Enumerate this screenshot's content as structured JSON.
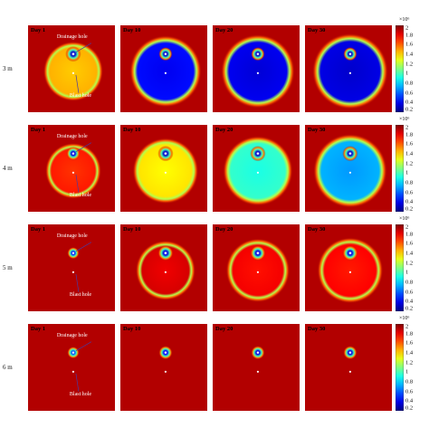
{
  "row_labels": [
    "3 m",
    "4 m",
    "5 m",
    "6 m"
  ],
  "day_labels": [
    "Day 1",
    "Day 10",
    "Day 20",
    "Day 30"
  ],
  "annotations": {
    "drainage_hole": "Drainage hole",
    "blast_hole": "Blast hole"
  },
  "colorbar": {
    "multiplier": "×10⁶",
    "ticks": [
      "2",
      "1.8",
      "1.6",
      "1.4",
      "1.2",
      "1",
      "0.8",
      "0.6",
      "0.4",
      "0.2"
    ],
    "min": 0.2,
    "max": 2.0,
    "colormap": "jet"
  },
  "colors": {
    "background": "#9f0c0c",
    "low": "#1a1aa8",
    "high": "#a00808"
  },
  "rows": [
    {
      "label": "3 m",
      "panels": [
        {
          "day": "Day 1",
          "zone_level": 1.45,
          "zone_radius": 0.3,
          "drain_level": 0.25,
          "drain_radius": 0.045
        },
        {
          "day": "Day 10",
          "zone_level": 0.32,
          "zone_radius": 0.36,
          "drain_level": 0.25,
          "drain_radius": 0.04
        },
        {
          "day": "Day 20",
          "zone_level": 0.27,
          "zone_radius": 0.37,
          "drain_level": 0.25,
          "drain_radius": 0.04
        },
        {
          "day": "Day 30",
          "zone_level": 0.25,
          "zone_radius": 0.38,
          "drain_level": 0.25,
          "drain_radius": 0.04
        }
      ]
    },
    {
      "label": "4 m",
      "panels": [
        {
          "day": "Day 1",
          "zone_level": 1.75,
          "zone_radius": 0.28,
          "drain_level": 0.3,
          "drain_radius": 0.04
        },
        {
          "day": "Day 10",
          "zone_level": 1.35,
          "zone_radius": 0.33,
          "drain_level": 0.25,
          "drain_radius": 0.045
        },
        {
          "day": "Day 20",
          "zone_level": 0.9,
          "zone_radius": 0.35,
          "drain_level": 0.25,
          "drain_radius": 0.045
        },
        {
          "day": "Day 30",
          "zone_level": 0.65,
          "zone_radius": 0.37,
          "drain_level": 0.25,
          "drain_radius": 0.045
        }
      ]
    },
    {
      "label": "5 m",
      "panels": [
        {
          "day": "Day 1",
          "zone_level": 1.95,
          "zone_radius": 0.0,
          "drain_level": 0.4,
          "drain_radius": 0.035
        },
        {
          "day": "Day 10",
          "zone_level": 1.88,
          "zone_radius": 0.3,
          "drain_level": 0.3,
          "drain_radius": 0.045
        },
        {
          "day": "Day 20",
          "zone_level": 1.82,
          "zone_radius": 0.32,
          "drain_level": 0.3,
          "drain_radius": 0.045
        },
        {
          "day": "Day 30",
          "zone_level": 1.8,
          "zone_radius": 0.33,
          "drain_level": 0.3,
          "drain_radius": 0.045
        }
      ]
    },
    {
      "label": "6 m",
      "panels": [
        {
          "day": "Day 1",
          "zone_level": 1.98,
          "zone_radius": 0.0,
          "drain_level": 0.5,
          "drain_radius": 0.035
        },
        {
          "day": "Day 10",
          "zone_level": 1.97,
          "zone_radius": 0.0,
          "drain_level": 0.35,
          "drain_radius": 0.04
        },
        {
          "day": "Day 20",
          "zone_level": 1.96,
          "zone_radius": 0.0,
          "drain_level": 0.3,
          "drain_radius": 0.04
        },
        {
          "day": "Day 30",
          "zone_level": 1.95,
          "zone_radius": 0.0,
          "drain_level": 0.3,
          "drain_radius": 0.04
        }
      ]
    }
  ]
}
